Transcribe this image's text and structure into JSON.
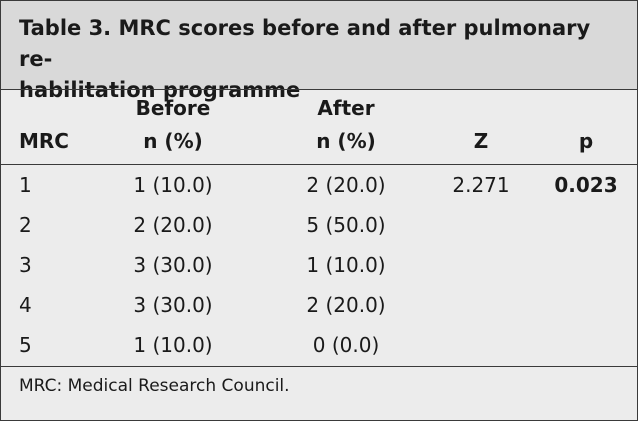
{
  "table": {
    "title_line1": "Table 3. MRC scores before and after pulmonary re-",
    "title_line2": "habilitation programme",
    "headers": {
      "mrc": "MRC",
      "before_line1": "Before",
      "before_line2": "n (%)",
      "after_line1": "After",
      "after_line2": "n (%)",
      "z": "Z",
      "p": "p"
    },
    "rows": [
      {
        "mrc": "1",
        "before": "1 (10.0)",
        "after": "2 (20.0)",
        "z": "2.271",
        "p": "0.023"
      },
      {
        "mrc": "2",
        "before": "2 (20.0)",
        "after": "5 (50.0)",
        "z": "",
        "p": ""
      },
      {
        "mrc": "3",
        "before": "3 (30.0)",
        "after": "1 (10.0)",
        "z": "",
        "p": ""
      },
      {
        "mrc": "4",
        "before": "3 (30.0)",
        "after": "2 (20.0)",
        "z": "",
        "p": ""
      },
      {
        "mrc": "5",
        "before": "1 (10.0)",
        "after": "0 (0.0)",
        "z": "",
        "p": ""
      }
    ],
    "footnote": "MRC: Medical Research Council."
  },
  "colors": {
    "title_band": "#d9d9d9",
    "body_background": "#ececec",
    "rule": "#3a3a3a"
  }
}
